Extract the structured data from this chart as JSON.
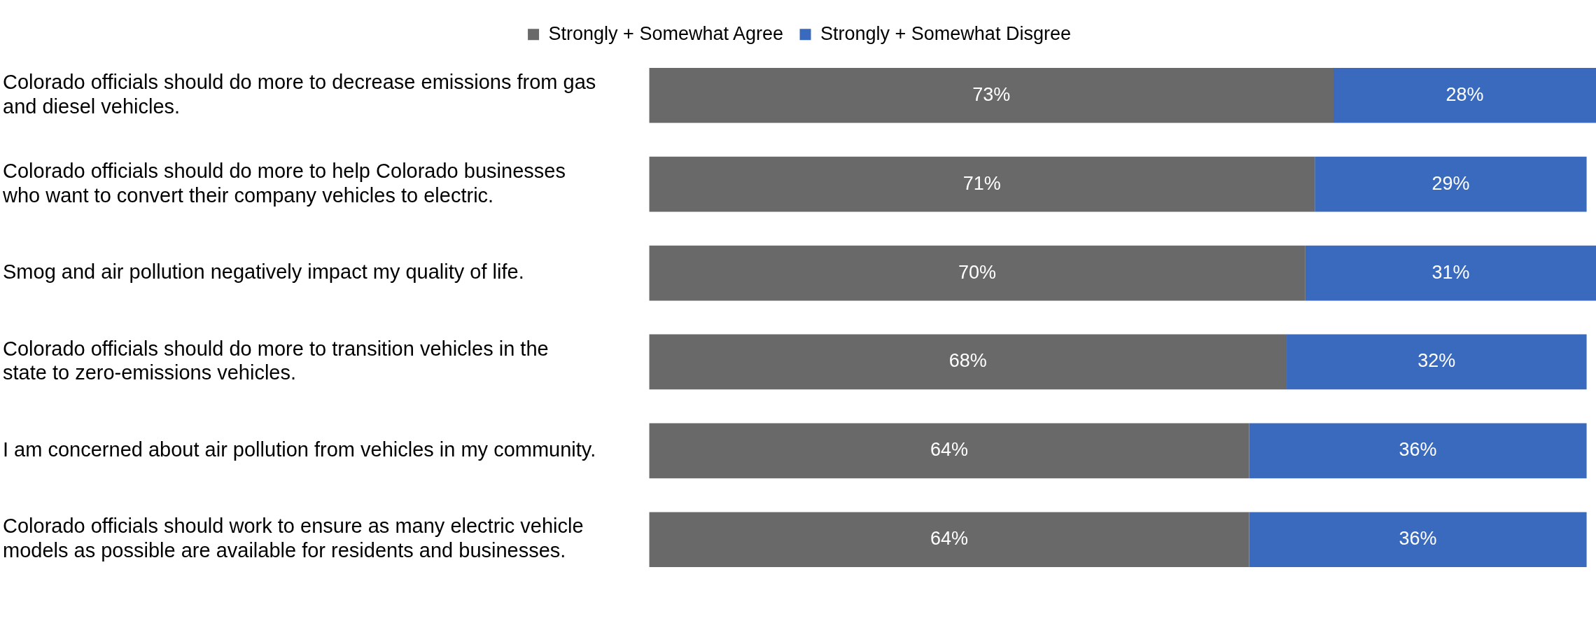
{
  "chart_data": {
    "type": "bar",
    "orientation": "horizontal",
    "stacked": true,
    "data_labels": true,
    "legend": "top",
    "grid": false,
    "tick_labels": "y",
    "xlim": [
      0,
      101
    ],
    "categories": [
      "Colorado officials should do more to decrease emissions from gas and diesel vehicles.",
      "Colorado officials should do more to help Colorado businesses who want to convert their company vehicles to electric.",
      "Smog and air pollution negatively impact my quality of life.",
      "Colorado officials should do more to transition vehicles in the state to zero-emissions vehicles.",
      "I am concerned about air pollution from vehicles in my community.",
      "Colorado officials should work to ensure as many electric vehicle models as possible are available for residents and businesses."
    ],
    "series": [
      {
        "name": "Strongly + Somewhat Agree",
        "color": "#696969",
        "values": [
          73,
          71,
          70,
          68,
          64,
          64
        ],
        "value_labels": [
          "73%",
          "71%",
          "70%",
          "68%",
          "64%",
          "64%"
        ]
      },
      {
        "name": "Strongly + Somewhat Disgree",
        "color": "#3a6abe",
        "values": [
          28,
          29,
          31,
          32,
          36,
          36
        ],
        "value_labels": [
          "28%",
          "29%",
          "31%",
          "32%",
          "36%",
          "36%"
        ]
      }
    ]
  }
}
